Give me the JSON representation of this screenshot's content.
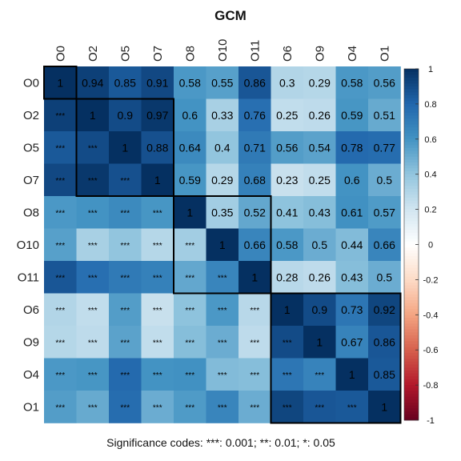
{
  "chart_data": {
    "type": "heatmap",
    "title": "GCM",
    "labels": [
      "O0",
      "O2",
      "O5",
      "O7",
      "O8",
      "O10",
      "O11",
      "O6",
      "O9",
      "O4",
      "O1"
    ],
    "matrix": [
      [
        1,
        0.94,
        0.85,
        0.91,
        0.58,
        0.55,
        0.86,
        0.3,
        0.29,
        0.58,
        0.56
      ],
      [
        0.94,
        1,
        0.9,
        0.97,
        0.6,
        0.33,
        0.76,
        0.25,
        0.26,
        0.59,
        0.51
      ],
      [
        0.85,
        0.9,
        1,
        0.88,
        0.64,
        0.4,
        0.71,
        0.56,
        0.54,
        0.78,
        0.77
      ],
      [
        0.91,
        0.97,
        0.88,
        1,
        0.59,
        0.29,
        0.68,
        0.23,
        0.25,
        0.6,
        0.5
      ],
      [
        0.58,
        0.6,
        0.64,
        0.59,
        1,
        0.35,
        0.52,
        0.41,
        0.43,
        0.61,
        0.57
      ],
      [
        0.55,
        0.33,
        0.4,
        0.29,
        0.35,
        1,
        0.66,
        0.58,
        0.5,
        0.44,
        0.66
      ],
      [
        0.86,
        0.76,
        0.71,
        0.68,
        0.52,
        0.66,
        1,
        0.28,
        0.26,
        0.43,
        0.5
      ],
      [
        0.3,
        0.25,
        0.56,
        0.23,
        0.41,
        0.58,
        0.28,
        1,
        0.9,
        0.73,
        0.92
      ],
      [
        0.29,
        0.26,
        0.54,
        0.25,
        0.43,
        0.5,
        0.26,
        0.9,
        1,
        0.67,
        0.86
      ],
      [
        0.58,
        0.59,
        0.78,
        0.6,
        0.61,
        0.44,
        0.43,
        0.73,
        0.67,
        1,
        0.85
      ],
      [
        0.56,
        0.51,
        0.77,
        0.5,
        0.57,
        0.66,
        0.5,
        0.92,
        0.86,
        0.85,
        1
      ]
    ],
    "lower_triangle_marker": "***",
    "clusters": [
      [
        0,
        0
      ],
      [
        1,
        3
      ],
      [
        4,
        6
      ],
      [
        7,
        10
      ]
    ],
    "color_scale": {
      "min": -1,
      "max": 1,
      "ticks": [
        "1",
        "0.8",
        "0.6",
        "0.4",
        "0.2",
        "0",
        "-0.2",
        "-0.4",
        "-0.6",
        "-0.8",
        "-1"
      ],
      "colors": [
        "#67001F",
        "#B2182B",
        "#D6604D",
        "#F4A582",
        "#FDDBC7",
        "#FFFFFF",
        "#D1E5F0",
        "#92C5DE",
        "#4393C3",
        "#2166AC",
        "#053061"
      ]
    },
    "footnote": "Significance codes:  ***: 0.001;  **: 0.01;  *: 0.05"
  }
}
